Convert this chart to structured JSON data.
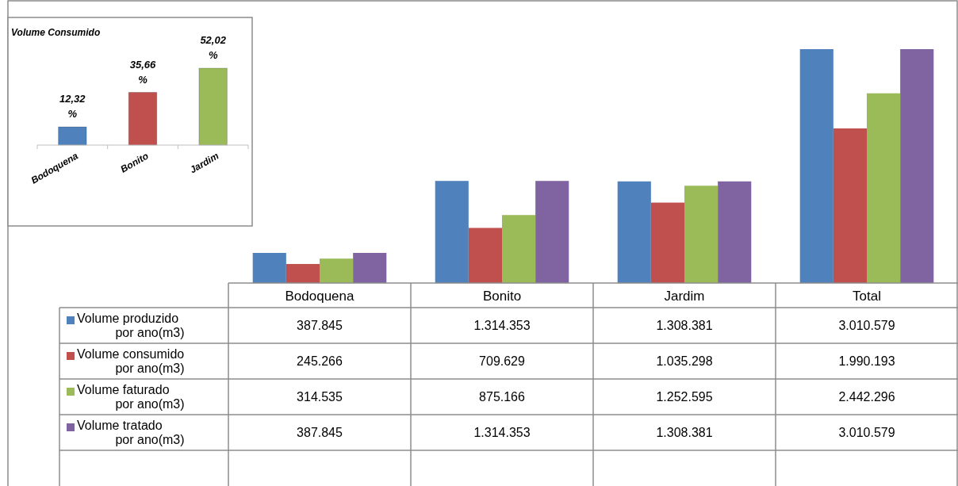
{
  "chart_data": [
    {
      "type": "bar",
      "categories": [
        "Bodoquena",
        "Bonito",
        "Jardim",
        "Total"
      ],
      "legend": "bottom left",
      "series": [
        {
          "name": "Volume produzido por ano(m3)",
          "color": "#4f81bd",
          "values": [
            387845,
            1314353,
            1308381,
            3010579
          ],
          "value_labels": [
            "387.845",
            "1.314.353",
            "1.308.381",
            "3.010.579"
          ]
        },
        {
          "name": "Volume consumido por ano(m3)",
          "color": "#c0504d",
          "values": [
            245266,
            709629,
            1035298,
            1990193
          ],
          "value_labels": [
            "245.266",
            "709.629",
            "1.035.298",
            "1.990.193"
          ]
        },
        {
          "name": "Volume faturado por ano(m3)",
          "color": "#9bbb59",
          "values": [
            314535,
            875166,
            1252595,
            2442296
          ],
          "value_labels": [
            "314.535",
            "875.166",
            "1.252.595",
            "2.442.296"
          ]
        },
        {
          "name": "Volume tratado por ano(m3)",
          "color": "#8064a2",
          "values": [
            387845,
            1314353,
            1308381,
            3010579
          ],
          "value_labels": [
            "387.845",
            "1.314.353",
            "1.308.381",
            "3.010.579"
          ]
        }
      ]
    },
    {
      "type": "bar",
      "title": "Volume Consumido",
      "categories": [
        "Bodoquena",
        "Bonito",
        "Jardim"
      ],
      "values": [
        12.32,
        35.66,
        52.02
      ],
      "colors": [
        "#4f81bd",
        "#c0504d",
        "#9bbb59"
      ],
      "value_labels": [
        "12,32 %",
        "35,66 %",
        "52,02 %"
      ]
    }
  ]
}
